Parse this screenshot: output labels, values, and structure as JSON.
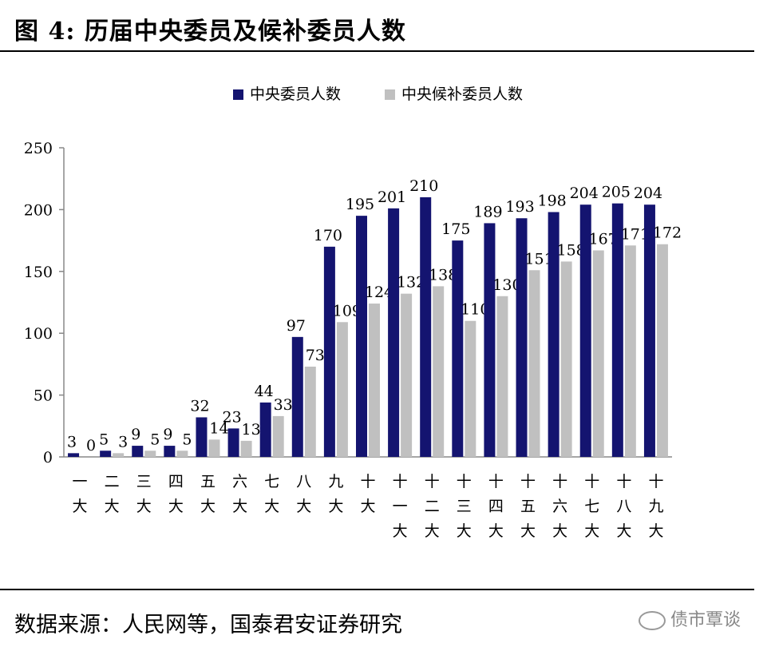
{
  "figure": {
    "title": "图 4: 历届中央委员及候补委员人数",
    "source": "数据来源：人民网等，国泰君安证券研究",
    "watermark": "债市覃谈"
  },
  "chart_data": {
    "type": "bar",
    "categories": [
      "一大",
      "二大",
      "三大",
      "四大",
      "五大",
      "六大",
      "七大",
      "八大",
      "九大",
      "十大",
      "十一大",
      "十二大",
      "十三大",
      "十四大",
      "十五大",
      "十六大",
      "十七大",
      "十八大",
      "十九大"
    ],
    "category_lines": [
      [
        "一",
        "大"
      ],
      [
        "二",
        "大"
      ],
      [
        "三",
        "大"
      ],
      [
        "四",
        "大"
      ],
      [
        "五",
        "大"
      ],
      [
        "六",
        "大"
      ],
      [
        "七",
        "大"
      ],
      [
        "八",
        "大"
      ],
      [
        "九",
        "大"
      ],
      [
        "十",
        "大"
      ],
      [
        "十",
        "一",
        "大"
      ],
      [
        "十",
        "二",
        "大"
      ],
      [
        "十",
        "三",
        "大"
      ],
      [
        "十",
        "四",
        "大"
      ],
      [
        "十",
        "五",
        "大"
      ],
      [
        "十",
        "六",
        "大"
      ],
      [
        "十",
        "七",
        "大"
      ],
      [
        "十",
        "八",
        "大"
      ],
      [
        "十",
        "九",
        "大"
      ]
    ],
    "series": [
      {
        "name": "中央委员人数",
        "color": "#141470",
        "values": [
          3,
          5,
          9,
          9,
          32,
          23,
          44,
          97,
          170,
          195,
          201,
          210,
          175,
          189,
          193,
          198,
          204,
          205,
          204
        ]
      },
      {
        "name": "中央候补委员人数",
        "color": "#c0c0c0",
        "values": [
          0,
          3,
          5,
          5,
          14,
          13,
          33,
          73,
          109,
          124,
          132,
          138,
          110,
          130,
          151,
          158,
          167,
          171,
          172
        ]
      }
    ],
    "ylim": [
      0,
      250
    ],
    "yticks": [
      0,
      50,
      100,
      150,
      200,
      250
    ],
    "legend_position": "top-center",
    "grid": false,
    "xlabel": "",
    "ylabel": ""
  }
}
